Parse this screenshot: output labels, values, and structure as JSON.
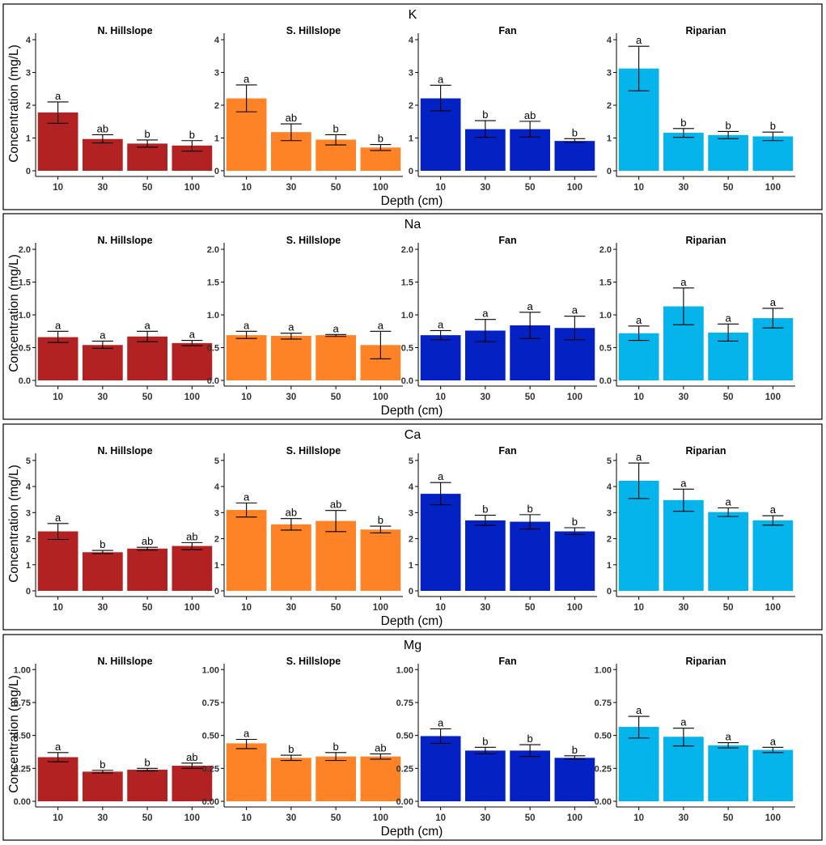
{
  "chart_data": {
    "type": "bar",
    "categories": [
      "10",
      "30",
      "50",
      "100"
    ],
    "ylabel": "Concentration (mg/L)",
    "xlabel": "Depth (cm)",
    "series_colors": {
      "N. Hillslope": "#b22222",
      "S. Hillslope": "#fd8326",
      "Fan": "#0422c4",
      "Riparian": "#06b4ec"
    },
    "panels": [
      {
        "element": "K",
        "ylim": [
          0,
          4.1
        ],
        "yticks": [
          0,
          1,
          2,
          3,
          4
        ],
        "ytick_labels": [
          "0",
          "1",
          "2",
          "3",
          "4"
        ],
        "facets": [
          {
            "name": "N. Hillslope",
            "values": [
              1.78,
              0.97,
              0.83,
              0.77
            ],
            "err_low": [
              1.45,
              0.85,
              0.72,
              0.6
            ],
            "err_high": [
              2.1,
              1.1,
              0.94,
              0.92
            ],
            "letters": [
              "a",
              "ab",
              "b",
              "b"
            ]
          },
          {
            "name": "S. Hillslope",
            "values": [
              2.21,
              1.18,
              0.95,
              0.71
            ],
            "err_low": [
              1.8,
              0.92,
              0.79,
              0.62
            ],
            "err_high": [
              2.62,
              1.43,
              1.1,
              0.8
            ],
            "letters": [
              "a",
              "ab",
              "b",
              "b"
            ]
          },
          {
            "name": "Fan",
            "values": [
              2.21,
              1.27,
              1.27,
              0.91
            ],
            "err_low": [
              1.83,
              1.02,
              1.03,
              0.87
            ],
            "err_high": [
              2.61,
              1.53,
              1.51,
              0.98
            ],
            "letters": [
              "a",
              "b",
              "ab",
              "b"
            ]
          },
          {
            "name": "Riparian",
            "values": [
              3.12,
              1.16,
              1.09,
              1.05
            ],
            "err_low": [
              2.44,
              1.02,
              0.98,
              0.92
            ],
            "err_high": [
              3.8,
              1.29,
              1.2,
              1.18
            ],
            "letters": [
              "a",
              "b",
              "b",
              "b"
            ]
          }
        ]
      },
      {
        "element": "Na",
        "ylim": [
          0,
          2.05
        ],
        "yticks": [
          0,
          0.5,
          1,
          1.5,
          2
        ],
        "ytick_labels": [
          "0.0",
          "0.5",
          "1.0",
          "1.5",
          "2.0"
        ],
        "facets": [
          {
            "name": "N. Hillslope",
            "values": [
              0.66,
              0.54,
              0.67,
              0.57
            ],
            "err_low": [
              0.58,
              0.49,
              0.59,
              0.53
            ],
            "err_high": [
              0.75,
              0.6,
              0.75,
              0.61
            ],
            "letters": [
              "a",
              "a",
              "a",
              "a"
            ]
          },
          {
            "name": "S. Hillslope",
            "values": [
              0.69,
              0.68,
              0.69,
              0.54
            ],
            "err_low": [
              0.64,
              0.63,
              0.67,
              0.33
            ],
            "err_high": [
              0.75,
              0.72,
              0.7,
              0.75
            ],
            "letters": [
              "a",
              "a",
              "a",
              "a"
            ]
          },
          {
            "name": "Fan",
            "values": [
              0.69,
              0.76,
              0.84,
              0.8
            ],
            "err_low": [
              0.62,
              0.59,
              0.64,
              0.62
            ],
            "err_high": [
              0.76,
              0.93,
              1.04,
              0.98
            ],
            "letters": [
              "a",
              "a",
              "a",
              "a"
            ]
          },
          {
            "name": "Riparian",
            "values": [
              0.72,
              1.13,
              0.73,
              0.95
            ],
            "err_low": [
              0.61,
              0.85,
              0.6,
              0.8
            ],
            "err_high": [
              0.83,
              1.41,
              0.86,
              1.1
            ],
            "letters": [
              "a",
              "a",
              "a",
              "a"
            ]
          }
        ]
      },
      {
        "element": "Ca",
        "ylim": [
          0,
          5.15
        ],
        "yticks": [
          0,
          1,
          2,
          3,
          4,
          5
        ],
        "ytick_labels": [
          "0",
          "1",
          "2",
          "3",
          "4",
          "5"
        ],
        "facets": [
          {
            "name": "N. Hillslope",
            "values": [
              2.28,
              1.48,
              1.62,
              1.72
            ],
            "err_low": [
              1.97,
              1.43,
              1.56,
              1.58
            ],
            "err_high": [
              2.58,
              1.55,
              1.67,
              1.85
            ],
            "letters": [
              "a",
              "b",
              "ab",
              "ab"
            ]
          },
          {
            "name": "S. Hillslope",
            "values": [
              3.1,
              2.55,
              2.68,
              2.35
            ],
            "err_low": [
              2.83,
              2.33,
              2.27,
              2.22
            ],
            "err_high": [
              3.37,
              2.77,
              3.08,
              2.48
            ],
            "letters": [
              "a",
              "ab",
              "ab",
              "b"
            ]
          },
          {
            "name": "Fan",
            "values": [
              3.72,
              2.7,
              2.65,
              2.28
            ],
            "err_low": [
              3.3,
              2.51,
              2.37,
              2.16
            ],
            "err_high": [
              4.15,
              2.9,
              2.92,
              2.42
            ],
            "letters": [
              "a",
              "b",
              "b",
              "b"
            ]
          },
          {
            "name": "Riparian",
            "values": [
              4.22,
              3.48,
              3.02,
              2.7
            ],
            "err_low": [
              3.54,
              3.05,
              2.85,
              2.52
            ],
            "err_high": [
              4.9,
              3.9,
              3.18,
              2.88
            ],
            "letters": [
              "a",
              "a",
              "a",
              "a"
            ]
          }
        ]
      },
      {
        "element": "Mg",
        "ylim": [
          0,
          1.02
        ],
        "yticks": [
          0,
          0.25,
          0.5,
          0.75,
          1
        ],
        "ytick_labels": [
          "0.00",
          "0.25",
          "0.50",
          "0.75",
          "1.00"
        ],
        "facets": [
          {
            "name": "N. Hillslope",
            "values": [
              0.335,
              0.225,
              0.24,
              0.27
            ],
            "err_low": [
              0.3,
              0.215,
              0.23,
              0.25
            ],
            "err_high": [
              0.37,
              0.235,
              0.25,
              0.29
            ],
            "letters": [
              "a",
              "b",
              "b",
              "ab"
            ]
          },
          {
            "name": "S. Hillslope",
            "values": [
              0.44,
              0.33,
              0.34,
              0.34
            ],
            "err_low": [
              0.4,
              0.31,
              0.31,
              0.32
            ],
            "err_high": [
              0.47,
              0.35,
              0.37,
              0.36
            ],
            "letters": [
              "a",
              "b",
              "b",
              "ab"
            ]
          },
          {
            "name": "Fan",
            "values": [
              0.495,
              0.385,
              0.385,
              0.33
            ],
            "err_low": [
              0.44,
              0.36,
              0.34,
              0.32
            ],
            "err_high": [
              0.55,
              0.41,
              0.43,
              0.345
            ],
            "letters": [
              "a",
              "b",
              "b",
              "b"
            ]
          },
          {
            "name": "Riparian",
            "values": [
              0.565,
              0.49,
              0.425,
              0.39
            ],
            "err_low": [
              0.48,
              0.42,
              0.405,
              0.37
            ],
            "err_high": [
              0.645,
              0.555,
              0.445,
              0.41
            ],
            "letters": [
              "a",
              "a",
              "a",
              "a"
            ]
          }
        ]
      }
    ]
  }
}
